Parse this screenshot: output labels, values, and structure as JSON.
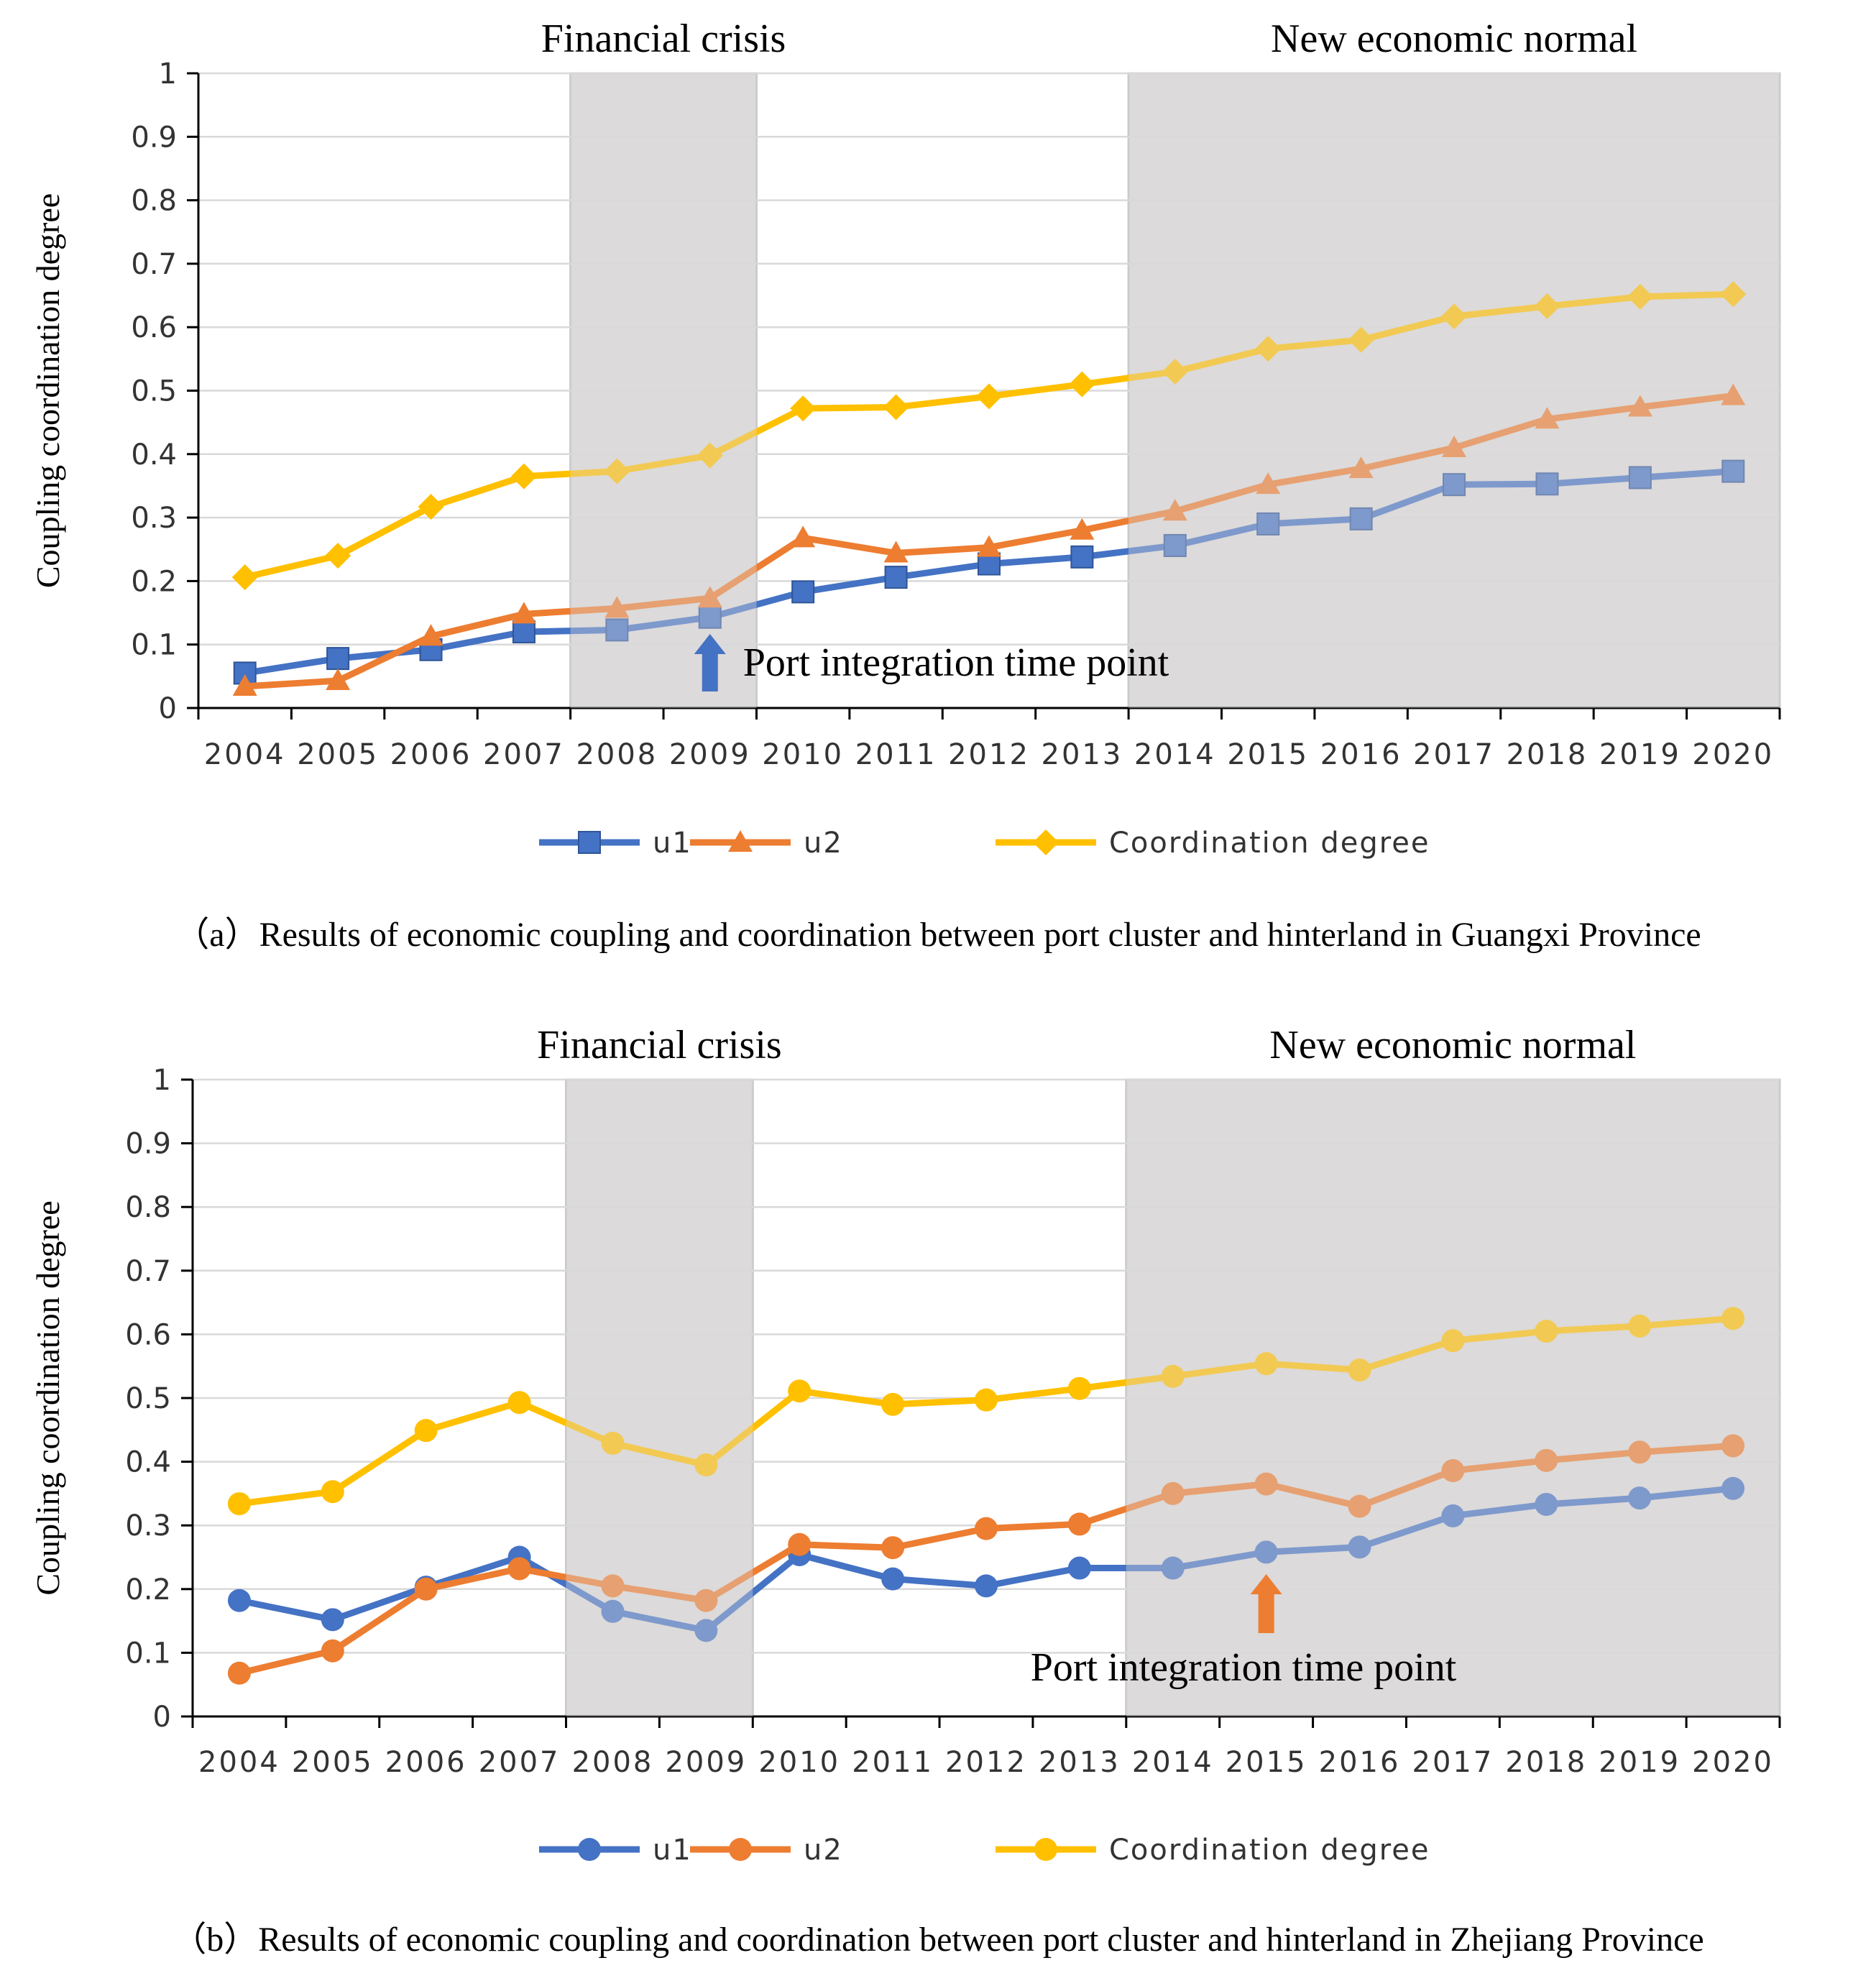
{
  "colors": {
    "u1": "#4472C4",
    "u2": "#ED7D31",
    "coord": "#FFC000",
    "shade": "#DCDADA",
    "grid": "#D9D9D9",
    "axis": "#000000"
  },
  "chart_data": [
    {
      "type": "line",
      "caption": "（a）Results of economic coupling and coordination between port cluster and hinterland in Guangxi Province",
      "ylabel": "Coupling coordination degree",
      "ylim": [
        0,
        1
      ],
      "yticks": [
        "0",
        "0.1",
        "0.2",
        "0.3",
        "0.4",
        "0.5",
        "0.6",
        "0.7",
        "0.8",
        "0.9",
        "1"
      ],
      "x": [
        "2004",
        "2005",
        "2006",
        "2007",
        "2008",
        "2009",
        "2010",
        "2011",
        "2012",
        "2013",
        "2014",
        "2015",
        "2016",
        "2017",
        "2018",
        "2019",
        "2020"
      ],
      "marker": "square-triangle-diamond",
      "series": [
        {
          "name": "u1",
          "values": [
            0.055,
            0.078,
            0.092,
            0.12,
            0.123,
            0.143,
            0.183,
            0.206,
            0.227,
            0.238,
            0.256,
            0.29,
            0.298,
            0.352,
            0.353,
            0.363,
            0.373
          ]
        },
        {
          "name": "u2",
          "values": [
            0.034,
            0.043,
            0.113,
            0.148,
            0.157,
            0.173,
            0.268,
            0.244,
            0.253,
            0.28,
            0.31,
            0.352,
            0.377,
            0.41,
            0.455,
            0.474,
            0.492
          ]
        },
        {
          "name": "Coordination degree",
          "values": [
            0.206,
            0.24,
            0.317,
            0.365,
            0.373,
            0.398,
            0.472,
            0.474,
            0.491,
            0.51,
            0.53,
            0.566,
            0.58,
            0.617,
            0.633,
            0.648,
            0.652
          ]
        }
      ],
      "shaded_periods": [
        {
          "label": "Financial crisis",
          "from": "2008",
          "to": "2009"
        },
        {
          "label": "New economic normal",
          "from": "2014",
          "to": "2020"
        }
      ],
      "annotation": {
        "text": "Port integration time point",
        "at": "2009"
      },
      "legend": "bottom"
    },
    {
      "type": "line",
      "caption": "（b）Results of economic coupling and coordination between port cluster and hinterland in Zhejiang Province",
      "ylabel": "Coupling coordination degree",
      "ylim": [
        0,
        1
      ],
      "yticks": [
        "0",
        "0.1",
        "0.2",
        "0.3",
        "0.4",
        "0.5",
        "0.6",
        "0.7",
        "0.8",
        "0.9",
        "1"
      ],
      "x": [
        "2004",
        "2005",
        "2006",
        "2007",
        "2008",
        "2009",
        "2010",
        "2011",
        "2012",
        "2013",
        "2014",
        "2015",
        "2016",
        "2017",
        "2018",
        "2019",
        "2020"
      ],
      "marker": "circle",
      "series": [
        {
          "name": "u1",
          "values": [
            0.182,
            0.152,
            0.203,
            0.25,
            0.165,
            0.135,
            0.254,
            0.216,
            0.205,
            0.233,
            0.233,
            0.258,
            0.266,
            0.315,
            0.333,
            0.343,
            0.358
          ]
        },
        {
          "name": "u2",
          "values": [
            0.068,
            0.103,
            0.2,
            0.232,
            0.205,
            0.182,
            0.27,
            0.265,
            0.295,
            0.302,
            0.35,
            0.365,
            0.33,
            0.386,
            0.402,
            0.415,
            0.425
          ]
        },
        {
          "name": "Coordination degree",
          "values": [
            0.334,
            0.353,
            0.449,
            0.493,
            0.429,
            0.395,
            0.511,
            0.49,
            0.497,
            0.515,
            0.534,
            0.554,
            0.544,
            0.59,
            0.605,
            0.613,
            0.625
          ]
        }
      ],
      "shaded_periods": [
        {
          "label": "Financial crisis",
          "from": "2008",
          "to": "2009"
        },
        {
          "label": "New economic normal",
          "from": "2014",
          "to": "2020"
        }
      ],
      "annotation": {
        "text": "Port integration time point",
        "at": "2015"
      },
      "legend": "bottom"
    }
  ]
}
